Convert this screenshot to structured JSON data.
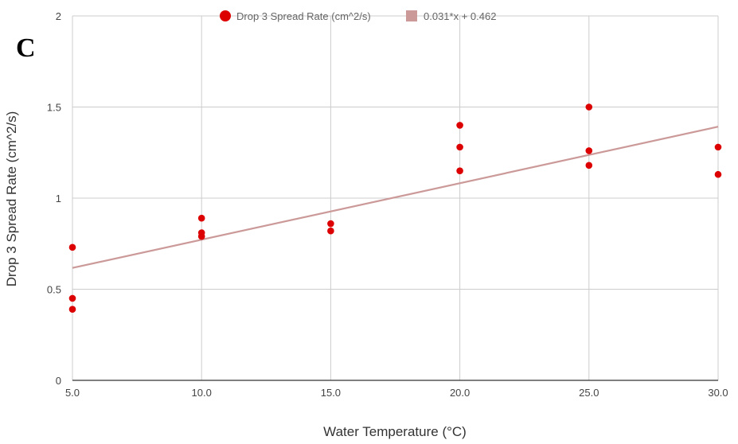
{
  "panel_label": "C",
  "chart_data": {
    "type": "scatter",
    "xlabel": "Water Temperature (°C)",
    "ylabel": "Drop 3 Spread Rate (cm^2/s)",
    "xlim": [
      5.0,
      30.0
    ],
    "ylim": [
      0,
      2
    ],
    "x_ticks": [
      "5.0",
      "10.0",
      "15.0",
      "20.0",
      "25.0",
      "30.0"
    ],
    "y_ticks": [
      "0",
      "0.5",
      "1",
      "1.5",
      "2"
    ],
    "x_tick_values": [
      5,
      10,
      15,
      20,
      25,
      30
    ],
    "y_tick_values": [
      0,
      0.5,
      1,
      1.5,
      2
    ],
    "grid": true,
    "legend_position": "top-center",
    "series": [
      {
        "name": "Drop 3 Spread Rate (cm^2/s)",
        "color": "#dd0000",
        "marker": "circle",
        "points": [
          [
            5,
            0.73
          ],
          [
            5,
            0.45
          ],
          [
            5,
            0.39
          ],
          [
            10,
            0.89
          ],
          [
            10,
            0.81
          ],
          [
            10,
            0.79
          ],
          [
            15,
            0.86
          ],
          [
            15,
            0.82
          ],
          [
            20,
            1.4
          ],
          [
            20,
            1.28
          ],
          [
            20,
            1.15
          ],
          [
            25,
            1.5
          ],
          [
            25,
            1.26
          ],
          [
            25,
            1.18
          ],
          [
            30,
            1.28
          ],
          [
            30,
            1.13
          ]
        ]
      }
    ],
    "trendline": {
      "name": "0.031*x + 0.462",
      "slope": 0.031,
      "intercept": 0.462,
      "color": "#cc9999"
    }
  }
}
